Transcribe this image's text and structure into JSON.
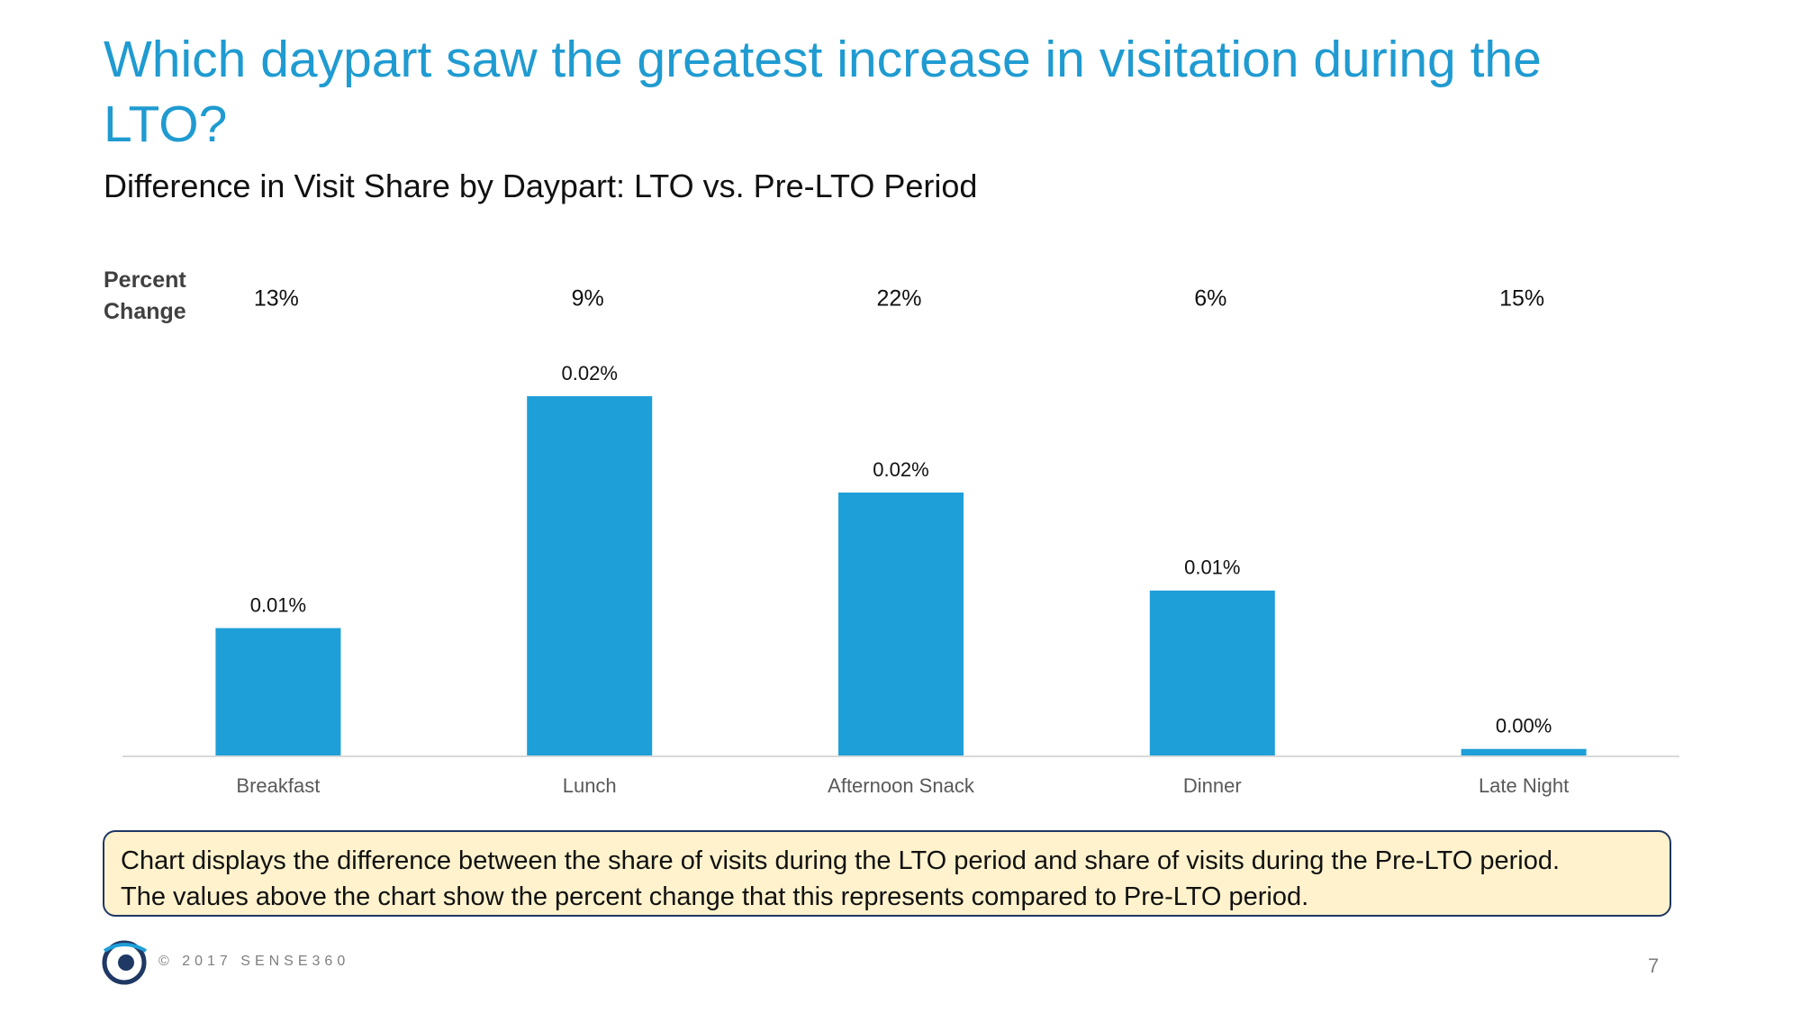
{
  "title": "Which daypart saw the greatest increase in visitation during the LTO?",
  "chart_data": {
    "type": "bar",
    "subtitle": "Difference in Visit Share by Daypart: LTO vs. Pre-LTO Period",
    "categories": [
      "Breakfast",
      "Lunch",
      "Afternoon Snack",
      "Dinner",
      "Late Night"
    ],
    "values": [
      0.0078,
      0.022,
      0.0161,
      0.0101,
      0.0004
    ],
    "value_labels": [
      "0.01%",
      "0.02%",
      "0.02%",
      "0.01%",
      "0.00%"
    ],
    "color": "#1f9fd8",
    "percent_change_title": "Percent Change",
    "percent_change_labels": [
      "13%",
      "9%",
      "22%",
      "6%",
      "15%"
    ]
  },
  "note": [
    "Chart displays the difference between the share of visits during the LTO period and share of visits during the Pre-LTO period.",
    "The values above the chart show the percent change that this represents compared to Pre-LTO period."
  ],
  "footer": {
    "copyright": "© 2017 SENSE360",
    "page": "7"
  }
}
